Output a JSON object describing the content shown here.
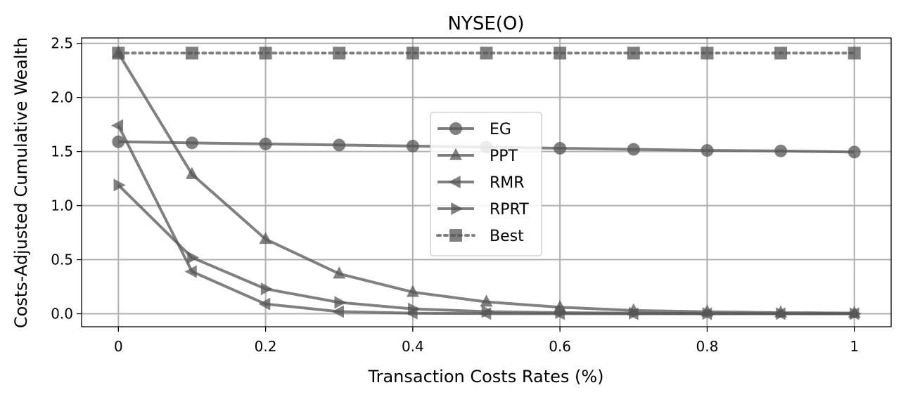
{
  "chart_data": {
    "type": "line",
    "title": "NYSE(O)",
    "xlabel": "Transaction Costs Rates (%)",
    "ylabel": "Costs-Adjusted Cumulative Wealth",
    "xlim": [
      -0.05,
      1.05
    ],
    "ylim": [
      -0.12,
      2.55
    ],
    "x": [
      0,
      0.1,
      0.2,
      0.3,
      0.4,
      0.5,
      0.6,
      0.7,
      0.8,
      0.9,
      1.0
    ],
    "xticks": [
      0,
      0.2,
      0.4,
      0.6,
      0.8,
      1.0
    ],
    "xtick_labels": [
      "0",
      "0.2",
      "0.4",
      "0.6",
      "0.8",
      "1"
    ],
    "yticks": [
      0,
      0.5,
      1.0,
      1.5,
      2.0,
      2.5
    ],
    "ytick_labels": [
      "0.0",
      "0.5",
      "1.0",
      "1.5",
      "2.0",
      "2.5"
    ],
    "grid": true,
    "legend_position": "center",
    "series": [
      {
        "name": "EG",
        "marker": "circle",
        "linestyle": "solid",
        "values": [
          1.59,
          1.58,
          1.57,
          1.56,
          1.55,
          1.54,
          1.53,
          1.52,
          1.51,
          1.505,
          1.495
        ]
      },
      {
        "name": "PPT",
        "marker": "triangle-up",
        "linestyle": "solid",
        "values": [
          2.41,
          1.29,
          0.69,
          0.37,
          0.2,
          0.11,
          0.06,
          0.03,
          0.018,
          0.01,
          0.006
        ]
      },
      {
        "name": "RMR",
        "marker": "triangle-left",
        "linestyle": "solid",
        "values": [
          1.74,
          0.39,
          0.09,
          0.02,
          0.005,
          0.002,
          0.001,
          0.0,
          0.0,
          0.0,
          0.0
        ]
      },
      {
        "name": "RPRT",
        "marker": "triangle-right",
        "linestyle": "solid",
        "values": [
          1.19,
          0.52,
          0.23,
          0.105,
          0.045,
          0.02,
          0.01,
          0.005,
          0.002,
          0.001,
          0.0
        ]
      },
      {
        "name": "Best",
        "marker": "square",
        "linestyle": "dotted",
        "values": [
          2.41,
          2.41,
          2.41,
          2.41,
          2.41,
          2.41,
          2.41,
          2.41,
          2.41,
          2.41,
          2.41
        ]
      }
    ],
    "colors": {
      "line": "#555555",
      "marker": "#555555",
      "grid": "#b0b0b0"
    }
  }
}
